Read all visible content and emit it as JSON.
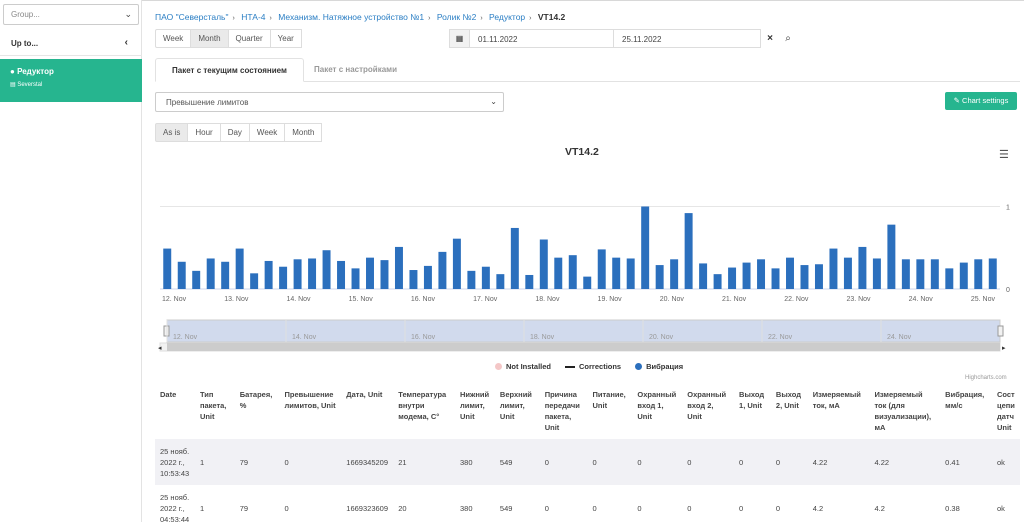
{
  "sidebar": {
    "group_placeholder": "Group...",
    "up_label": "Up to...",
    "active_title": "Редуктор",
    "active_subtitle": "Severstal"
  },
  "breadcrumb": [
    "ПАО \"Северсталь\"",
    "НТА-4",
    "Механизм. Натяжное устройство №1",
    "Ролик №2",
    "Редуктор"
  ],
  "breadcrumb_current": "VT14.2",
  "period_buttons": [
    "Week",
    "Month",
    "Quarter",
    "Year"
  ],
  "period_active": "Month",
  "date_from": "01.11.2022",
  "date_to": "25.11.2022",
  "tabs": [
    "Пакет с текущим состоянием",
    "Пакет с настройками"
  ],
  "active_tab": 0,
  "limit_select": "Превышение лимитов",
  "chart_settings_label": "Chart settings",
  "agg_buttons": [
    "As is",
    "Hour",
    "Day",
    "Week",
    "Month"
  ],
  "agg_active": "As is",
  "legend": [
    {
      "label": "Not Installed",
      "color": "#f4c7c7"
    },
    {
      "label": "Corrections",
      "color": "#222222"
    },
    {
      "label": "Вибрация",
      "color": "#2b6fbd"
    }
  ],
  "credit": "Highcharts.com",
  "chart_data": {
    "type": "bar",
    "title": "VT14.2",
    "ylim": [
      0,
      1.2
    ],
    "y_ticks": [
      "1",
      "0"
    ],
    "x_labels": [
      "12. Nov",
      "13. Nov",
      "14. Nov",
      "15. Nov",
      "16. Nov",
      "17. Nov",
      "18. Nov",
      "19. Nov",
      "20. Nov",
      "21. Nov",
      "22. Nov",
      "23. Nov",
      "24. Nov",
      "25. Nov"
    ],
    "navigator_labels": [
      "12. Nov",
      "14. Nov",
      "16. Nov",
      "18. Nov",
      "20. Nov",
      "22. Nov",
      "24. Nov"
    ],
    "series": [
      {
        "name": "Вибрация",
        "color": "#2b6fbd",
        "values": [
          0.49,
          0.33,
          0.22,
          0.37,
          0.33,
          0.49,
          0.19,
          0.34,
          0.27,
          0.36,
          0.37,
          0.47,
          0.34,
          0.25,
          0.38,
          0.35,
          0.51,
          0.23,
          0.28,
          0.45,
          0.61,
          0.22,
          0.27,
          0.18,
          0.74,
          0.17,
          0.6,
          0.38,
          0.41,
          0.15,
          0.48,
          0.38,
          0.37,
          1.0,
          0.29,
          0.36,
          0.92,
          0.31,
          0.18,
          0.26,
          0.32,
          0.36,
          0.25,
          0.38,
          0.29,
          0.3,
          0.49,
          0.38,
          0.51,
          0.37,
          0.78,
          0.36,
          0.36,
          0.36,
          0.25,
          0.32,
          0.36,
          0.37
        ]
      }
    ]
  },
  "table": {
    "headers": [
      "Date",
      "Тип пакета, Unit",
      "Батарея, %",
      "Превышение лимитов, Unit",
      "Дата, Unit",
      "Температура внутри модема, C°",
      "Нижний лимит, Unit",
      "Верхний лимит, Unit",
      "Причина передачи пакета, Unit",
      "Питание, Unit",
      "Охранный вход 1, Unit",
      "Охранный вход 2, Unit",
      "Выход 1, Unit",
      "Выход 2, Unit",
      "Измеряемый ток, мА",
      "Измеряемый ток (для визуализации), мА",
      "Вибрация, мм/с",
      "Сост цепи датч Unit"
    ],
    "rows": [
      [
        "25 нояб. 2022 г., 10:53:43",
        "1",
        "79",
        "0",
        "1669345209",
        "21",
        "380",
        "549",
        "0",
        "0",
        "0",
        "0",
        "0",
        "0",
        "4.22",
        "4.22",
        "0.41",
        "ok"
      ],
      [
        "25 нояб. 2022 г., 04:53:44",
        "1",
        "79",
        "0",
        "1669323609",
        "20",
        "380",
        "549",
        "0",
        "0",
        "0",
        "0",
        "0",
        "0",
        "4.2",
        "4.2",
        "0.38",
        "ok"
      ]
    ]
  }
}
